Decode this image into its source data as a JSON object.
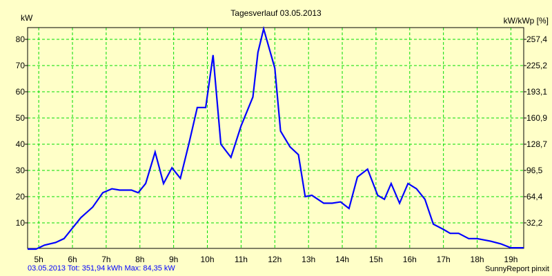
{
  "chart_data": {
    "type": "line",
    "title": "Tagesverlauf 03.05.2013",
    "ylabel": "kW",
    "ylabel_right": "kW/kWp [%]",
    "xlim": [
      4.67,
      19.38
    ],
    "ylim": [
      0,
      84.4
    ],
    "x_ticks": [
      5,
      6,
      7,
      8,
      9,
      10,
      11,
      12,
      13,
      14,
      15,
      16,
      17,
      18,
      19
    ],
    "x_tick_labels": [
      "5h",
      "6h",
      "7h",
      "8h",
      "9h",
      "10h",
      "11h",
      "12h",
      "13h",
      "14h",
      "15h",
      "16h",
      "17h",
      "18h",
      "19h"
    ],
    "y_ticks": [
      10,
      20,
      30,
      40,
      50,
      60,
      70,
      80
    ],
    "y_tick_labels": [
      "10",
      "20",
      "30",
      "40",
      "50",
      "60",
      "70",
      "80"
    ],
    "y_right_tick_labels": [
      "32,2",
      "64,4",
      "96,5",
      "128,7",
      "160,9",
      "193,1",
      "225,2",
      "257,4"
    ],
    "grid": true,
    "series": [
      {
        "name": "kW",
        "color": "#0000ff",
        "x": [
          4.67,
          4.92,
          5.17,
          5.5,
          5.75,
          6,
          6.25,
          6.6,
          6.9,
          7.17,
          7.4,
          7.75,
          7.95,
          8.17,
          8.45,
          8.7,
          8.95,
          9.2,
          9.45,
          9.7,
          9.95,
          10.17,
          10.4,
          10.7,
          11,
          11.35,
          11.5,
          11.67,
          12,
          12.17,
          12.45,
          12.7,
          12.9,
          13.1,
          13.45,
          13.7,
          13.95,
          14.2,
          14.45,
          14.75,
          15.05,
          15.25,
          15.45,
          15.7,
          15.95,
          16.2,
          16.45,
          16.7,
          17,
          17.2,
          17.45,
          17.75,
          18,
          18.4,
          18.7,
          19,
          19.38
        ],
        "y": [
          0,
          0,
          1.5,
          2.5,
          4,
          8,
          12,
          16,
          21.5,
          23,
          22.5,
          22.5,
          21.5,
          25,
          37,
          25,
          31,
          27,
          40,
          54,
          54,
          74,
          40,
          35,
          47,
          58,
          75,
          84,
          69,
          45,
          39,
          36,
          20,
          20.5,
          17.5,
          17.5,
          18,
          15.5,
          27.5,
          30.5,
          20.5,
          19,
          25,
          17.5,
          25,
          23,
          19,
          9.5,
          7.5,
          6,
          6,
          4,
          4,
          3,
          2,
          0.5,
          0.5
        ]
      }
    ],
    "footer_left": "03.05.2013 Tot: 351,94 kWh Max: 84,35 kW",
    "footer_right": "SunnyReport pinxit"
  }
}
